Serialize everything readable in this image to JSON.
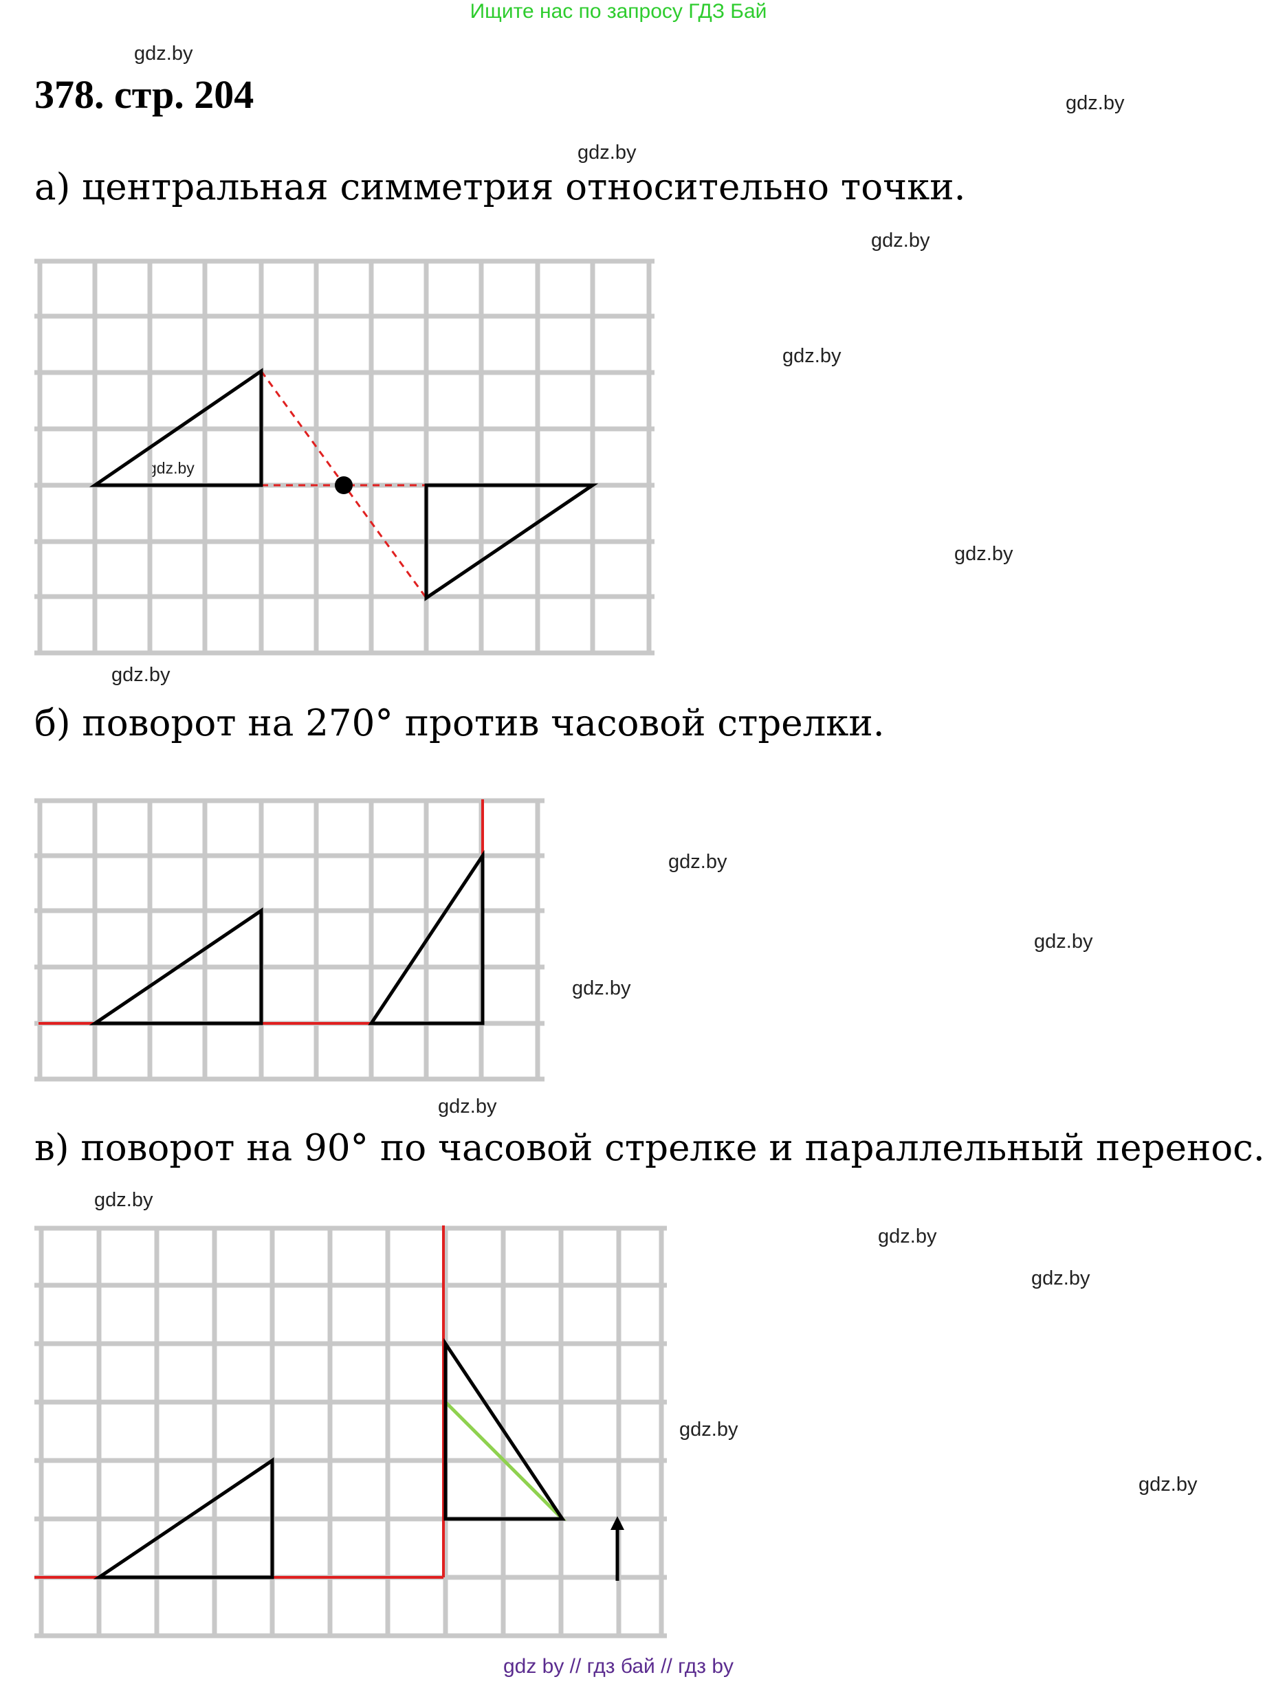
{
  "header": {
    "banner": "Ищите нас по запросу ГДЗ Бай",
    "title": "378. стр. 204"
  },
  "tasks": {
    "a": "а) центральная симметрия относительно точки.",
    "b": "б) поворот на 270° против часовой стрелки.",
    "c": "в) поворот на 90° по часовой стрелке и параллельный перенос."
  },
  "watermark": "gdz.by",
  "footer": "gdz by  //  гдз бай  //  гдз by",
  "colors": {
    "grid": "#c8c8c8",
    "figure": "#000000",
    "construction": "#e02020",
    "translated": "#8fd14f"
  }
}
